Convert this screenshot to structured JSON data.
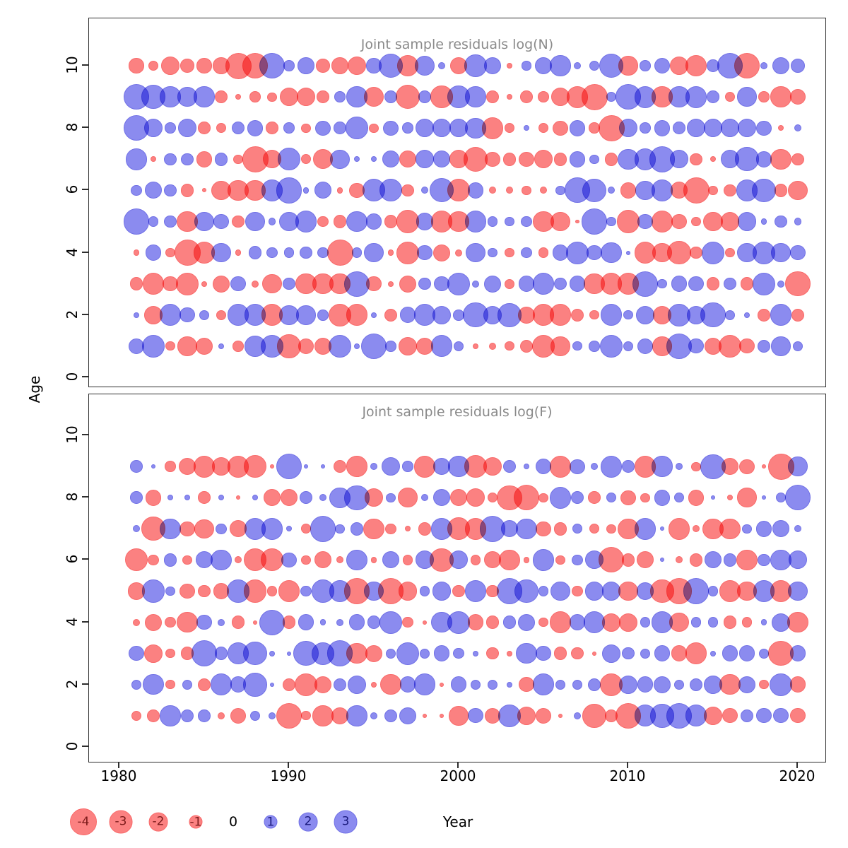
{
  "figure": {
    "ylabel": "Age",
    "xlabel": "Year",
    "x_ticks": [
      1980,
      1990,
      2000,
      2010,
      2020
    ],
    "y_ticks": [
      0,
      2,
      4,
      6,
      8,
      10
    ]
  },
  "colors": {
    "negative_fill": "#FB8181",
    "negative_border": "#F96A6A",
    "negative_text": "#7C1A1A",
    "positive_fill": "#8B8BEF",
    "positive_border": "#7171E6",
    "positive_text": "#1A1A7C",
    "title_gray": "#8a8a8a"
  },
  "legend": {
    "items": [
      {
        "label": "-4",
        "value": -4
      },
      {
        "label": "-3",
        "value": -3
      },
      {
        "label": "-2",
        "value": -2
      },
      {
        "label": "-1",
        "value": -1
      },
      {
        "label": "0",
        "value": 0
      },
      {
        "label": "1",
        "value": 1
      },
      {
        "label": "2",
        "value": 2
      },
      {
        "label": "3",
        "value": 3
      }
    ]
  },
  "chart_data": [
    {
      "type": "bubble",
      "title": "Joint sample residuals log(N)",
      "xlabel": "Year",
      "ylabel": "Age",
      "x_start": 1981,
      "x_end": 2020,
      "ylim": [
        0,
        11
      ],
      "xlim": [
        1978,
        2022
      ],
      "legend_note": "circle area/size = |residual|, red = negative, blue = positive",
      "rows": [
        {
          "age": 10,
          "values": [
            -1.3,
            -0.6,
            -2,
            -1.1,
            -1.3,
            -1.6,
            -4,
            -3.9,
            3.9,
            0.7,
            1.6,
            -1.1,
            -1.6,
            -2,
            1.3,
            3.5,
            -2.6,
            2.4,
            0.3,
            -1.7,
            2.9,
            1.7,
            -0.2,
            0.5,
            1.7,
            2.5,
            0.3,
            0.6,
            3.4,
            -2.2,
            0.7,
            1.5,
            -2,
            -2.8,
            0.9,
            3.9,
            -3.8,
            0.3,
            1.7,
            1.2
          ]
        },
        {
          "age": 9,
          "values": [
            3.9,
            3.3,
            2.5,
            2.2,
            2.5,
            -1,
            -0.2,
            -0.7,
            -0.5,
            -2,
            -2,
            -0.9,
            0.7,
            2.5,
            -2.3,
            1,
            -3.5,
            1,
            -2.9,
            3.1,
            2.5,
            -1,
            -0.2,
            -0.9,
            -0.7,
            -2,
            -2.8,
            -4,
            0.6,
            3.8,
            2.8,
            -2.5,
            2.5,
            2.8,
            0.9,
            -0.6,
            2.2,
            -0.7,
            -2.5,
            -1.5
          ]
        },
        {
          "age": 8,
          "values": [
            3.9,
            2,
            0.7,
            2,
            -0.9,
            -0.6,
            1,
            1.5,
            -0.9,
            0.7,
            -0.5,
            1.3,
            0.9,
            2.9,
            -0.5,
            1.3,
            0.7,
            2,
            2,
            2,
            2.5,
            -2.8,
            -0.6,
            0.2,
            -0.6,
            -1.3,
            1.5,
            -0.7,
            -4,
            2,
            0.7,
            1.5,
            0.9,
            2,
            2,
            2,
            2,
            1.3,
            -0.2,
            0.3
          ]
        },
        {
          "age": 7,
          "values": [
            2.8,
            -0.2,
            0.9,
            0.9,
            -1.5,
            1,
            -0.5,
            -4,
            -2,
            3,
            -0.6,
            -2.3,
            2.2,
            0.2,
            0.2,
            1.7,
            -1.7,
            2,
            1.7,
            -2,
            -3.5,
            -1.3,
            -1,
            -1.3,
            -2,
            -1,
            1.5,
            0.5,
            -1,
            2.5,
            2.8,
            3.9,
            2,
            -0.9,
            -0.2,
            2,
            3.3,
            1.5,
            -2.5,
            -0.9
          ]
        },
        {
          "age": 6,
          "values": [
            0.7,
            1.7,
            0.9,
            -1,
            -0.1,
            -2.2,
            -2.5,
            -2.5,
            2.8,
            3.9,
            0.2,
            1.7,
            -0.2,
            -1.3,
            3,
            3,
            -0.9,
            0.3,
            3.4,
            -3,
            1.5,
            -0.3,
            -0.3,
            -0.5,
            -0.3,
            0.5,
            3.8,
            3.3,
            0.3,
            -1.5,
            2.2,
            2.8,
            -1.7,
            -4,
            -0.5,
            -0.9,
            2.8,
            3.3,
            -1,
            -2.2
          ]
        },
        {
          "age": 5,
          "values": [
            3.9,
            0.6,
            0.9,
            -2.5,
            2.2,
            1.3,
            -0.9,
            2.2,
            0.3,
            2.2,
            2.8,
            -0.7,
            -1,
            2.5,
            1.5,
            -1,
            -3.1,
            1.7,
            -2.8,
            -2.5,
            2.7,
            0.6,
            0.5,
            0.7,
            -2.5,
            -2.2,
            -0.1,
            3.8,
            0.5,
            -3,
            1.3,
            -2.8,
            -1.3,
            -0.5,
            -2.2,
            -2,
            2,
            0.2,
            0.9,
            0.3
          ]
        },
        {
          "age": 4,
          "values": [
            -0.2,
            1.5,
            -0.5,
            -4,
            -2.8,
            2.2,
            -0.2,
            1,
            0.7,
            0.6,
            0.9,
            0.7,
            -4,
            0.6,
            2.2,
            -0.2,
            -3,
            1.3,
            -1.7,
            -0.3,
            2.2,
            0.5,
            -0.5,
            0.7,
            -0.6,
            1.5,
            3,
            1.3,
            2.5,
            0.1,
            -2.8,
            -2.2,
            -3.3,
            -0.9,
            3,
            -0.5,
            2.2,
            3,
            2.2,
            1.3
          ]
        },
        {
          "age": 3,
          "values": [
            -1,
            -2.8,
            -1.3,
            -3,
            -0.2,
            -1.7,
            1.3,
            -0.3,
            -2.2,
            0.9,
            -2.5,
            -2.5,
            -2.5,
            3.8,
            -1.3,
            -0.2,
            -1.7,
            0.9,
            1.3,
            3,
            0.3,
            1.7,
            -0.6,
            1.5,
            2.8,
            0.9,
            1.5,
            -2.5,
            -2.8,
            -2.8,
            3.8,
            0.5,
            1.5,
            1.3,
            -1,
            0.9,
            -1,
            3,
            0.3,
            -3.6
          ]
        },
        {
          "age": 2,
          "values": [
            0.2,
            -2,
            2.8,
            1.3,
            0.6,
            -0.6,
            2.8,
            2.8,
            -2.8,
            2.2,
            2.2,
            0.7,
            -3,
            -2.8,
            0.2,
            -1,
            1.5,
            2.8,
            2,
            0.7,
            3.6,
            2,
            3.3,
            -1.7,
            -2.8,
            -2.8,
            -1,
            -0.5,
            2.8,
            0.5,
            2,
            -2,
            3,
            2,
            3.6,
            0.6,
            0.2,
            -0.9,
            2.8,
            -1
          ]
        },
        {
          "age": 1,
          "values": [
            1.5,
            3,
            -0.5,
            -2.2,
            -1.7,
            0.2,
            -0.7,
            2.5,
            3,
            -3.3,
            -1.5,
            -1.7,
            3,
            0.2,
            3.9,
            0.7,
            -2,
            -1.7,
            2.8,
            0.6,
            -0.2,
            -0.3,
            -0.5,
            -1,
            -3,
            -2.2,
            0.5,
            0.7,
            3,
            0.6,
            1.5,
            -2.2,
            3.9,
            1.3,
            -1.7,
            -3,
            -1.3,
            1,
            2.2,
            0.6
          ]
        }
      ]
    },
    {
      "type": "bubble",
      "title": "Joint sample residuals log(F)",
      "xlabel": "Year",
      "ylabel": "Age",
      "x_start": 1981,
      "x_end": 2020,
      "ylim": [
        0,
        11
      ],
      "xlim": [
        1978,
        2022
      ],
      "legend_note": "circle area/size = |residual|, red = negative, blue = positive",
      "rows": [
        {
          "age": 9,
          "values": [
            0.9,
            0.1,
            -0.7,
            -1.7,
            -2.8,
            -2,
            -2.8,
            -3,
            -0.1,
            3.8,
            0.1,
            0.1,
            -1,
            -2.5,
            0.3,
            2,
            0.7,
            -2.8,
            1.7,
            2.5,
            -3,
            -2,
            1,
            0.2,
            1.5,
            -2.8,
            1.3,
            0.3,
            2.8,
            0.9,
            -2.8,
            2.5,
            0.3,
            -0.5,
            3.6,
            -1.7,
            -1.3,
            -0.1,
            -4,
            2.2
          ]
        },
        {
          "age": 8,
          "values": [
            0.9,
            -1.5,
            0.2,
            0.2,
            -0.9,
            0.2,
            -0.1,
            0.2,
            -1.7,
            -1.7,
            1,
            0.3,
            2.5,
            3.6,
            -2,
            0.5,
            -2.2,
            0.3,
            1.7,
            -1.7,
            -2,
            -0.6,
            -3.6,
            -3.8,
            -0.5,
            2.8,
            1,
            -0.9,
            0.6,
            -1.3,
            -0.5,
            1.5,
            0.6,
            -1.5,
            0.1,
            -0.2,
            -2.2,
            0.1,
            0.6,
            3.9
          ]
        },
        {
          "age": 7,
          "values": [
            0.3,
            -3.3,
            2.5,
            -1.3,
            -2.2,
            0.7,
            -1.7,
            2.8,
            2.8,
            0.2,
            -0.6,
            3.9,
            0.5,
            1,
            -2.5,
            -0.7,
            -0.2,
            -1,
            2.8,
            -3,
            -2.8,
            3.9,
            1.7,
            2.5,
            -1.3,
            -1,
            0.6,
            -0.6,
            -0.5,
            -2.5,
            2.8,
            0.1,
            -2.8,
            -0.3,
            -2.5,
            -2.5,
            0.5,
            1.5,
            1.7,
            0.3
          ]
        },
        {
          "age": 6,
          "values": [
            -3,
            -0.7,
            1,
            -0.5,
            1.7,
            2.5,
            -0.3,
            -3,
            -3,
            1.3,
            -0.5,
            -1.7,
            -0.3,
            2.5,
            -0.2,
            1.7,
            -0.6,
            2,
            -3.3,
            2,
            -0.6,
            -1.7,
            -2.5,
            -0.2,
            2.8,
            -0.5,
            0.7,
            2,
            -3.8,
            -1,
            -1.7,
            0.1,
            -0.3,
            -1,
            1.7,
            1,
            -2.5,
            0.9,
            2.5,
            2
          ]
        },
        {
          "age": 5,
          "values": [
            -1.7,
            3,
            0.5,
            -1.3,
            -0.9,
            -1.5,
            3,
            -3,
            -0.6,
            -2.8,
            0.7,
            3,
            2.8,
            -3.9,
            2.2,
            -3.9,
            -2,
            0.6,
            2,
            -0.9,
            2.8,
            -0.9,
            3.8,
            3.3,
            0.6,
            2.2,
            -0.7,
            2,
            2,
            -2.2,
            1.7,
            -3.3,
            -3.9,
            3.9,
            0.6,
            -2.8,
            -2.2,
            2.8,
            -2.8,
            2.2
          ]
        },
        {
          "age": 4,
          "values": [
            -0.3,
            -1.7,
            -0.7,
            -2.5,
            1.3,
            0.3,
            -1,
            -0.1,
            3.8,
            -1,
            1.5,
            0.2,
            0.3,
            1.5,
            1,
            3,
            -0.7,
            -0.1,
            2.5,
            3,
            -1.5,
            -1,
            1,
            1.7,
            -0.5,
            -2.8,
            1.5,
            2.8,
            -2,
            -2,
            0.6,
            2.8,
            -2.2,
            0.6,
            0.6,
            -1,
            -0.6,
            0.2,
            2,
            -2.5
          ]
        },
        {
          "age": 3,
          "values": [
            1.3,
            -2,
            -0.5,
            -1,
            3.9,
            1,
            2.8,
            3.3,
            0.2,
            0.1,
            3.6,
            3,
            3.9,
            -2.5,
            -1.7,
            0.6,
            3,
            0.6,
            1.5,
            0.7,
            0.2,
            -0.9,
            -0.2,
            2.5,
            1.3,
            -1,
            -0.9,
            -0.1,
            2,
            0.9,
            0.6,
            1.5,
            -1.5,
            -2.8,
            0.2,
            1.5,
            1.5,
            0.6,
            -3.6,
            1.5
          ]
        },
        {
          "age": 2,
          "values": [
            0.6,
            2.5,
            -0.5,
            0.6,
            -1,
            2.8,
            1.5,
            3.3,
            0.1,
            -1,
            -3,
            -1.7,
            1,
            2,
            -0.2,
            -2.5,
            1.5,
            2.8,
            -0.1,
            1.5,
            0.6,
            0.6,
            0.2,
            -1.3,
            2.8,
            0.6,
            0.6,
            1,
            -3,
            2,
            1.5,
            1.7,
            0.6,
            1,
            2,
            -2.5,
            1.7,
            -0.5,
            3,
            -1.5
          ]
        },
        {
          "age": 1,
          "values": [
            -0.6,
            -0.9,
            2.5,
            1,
            0.9,
            -0.3,
            -1.5,
            0.6,
            0.3,
            -3.8,
            -0.5,
            -2.5,
            -1.7,
            2.5,
            0.3,
            1,
            1.7,
            -0.1,
            -0.1,
            -2.2,
            1.3,
            -1.5,
            3,
            -2,
            -1.5,
            -0.1,
            0.3,
            -3.3,
            -1,
            -3.9,
            2.8,
            3.3,
            3.9,
            2.8,
            -2,
            -1.3,
            1,
            1.3,
            1.3,
            -1.3
          ]
        }
      ]
    }
  ]
}
